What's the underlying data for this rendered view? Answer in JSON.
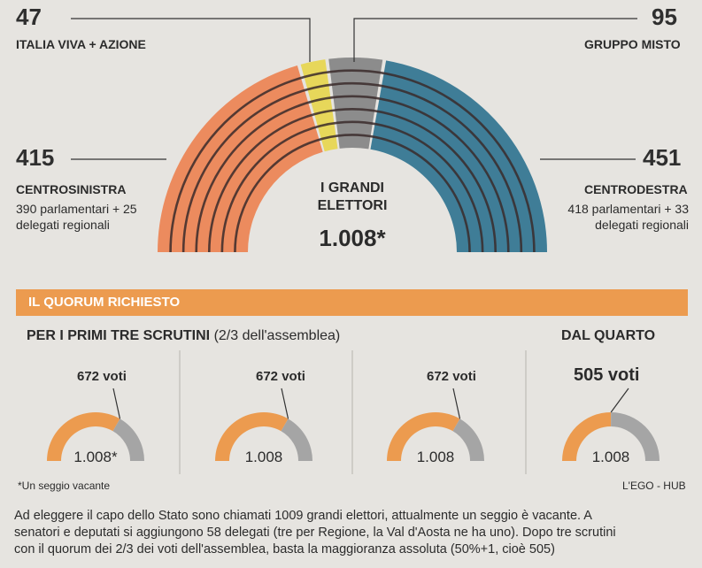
{
  "chart_data": {
    "type": "parliament-arc",
    "title_lines": [
      "I GRANDI",
      "ELETTORI"
    ],
    "total": "1.008*",
    "groups": [
      {
        "value": 415,
        "number": "415",
        "name": "CENTROSINISTRA",
        "detail": "390 parlamentari + 25 delegati regionali",
        "color": "#ec8b5e"
      },
      {
        "value": 47,
        "number": "47",
        "name": "ITALIA VIVA + AZIONE",
        "detail": "",
        "color": "#e7d75a"
      },
      {
        "value": 95,
        "number": "95",
        "name": "GRUPPO MISTO",
        "detail": "",
        "color": "#8c8c8c"
      },
      {
        "value": 451,
        "number": "451",
        "name": "CENTRODESTRA",
        "detail": "418 parlamentari + 33 delegati regionali",
        "color": "#3f7d97"
      }
    ]
  },
  "quorum": {
    "banner": "IL QUORUM RICHIESTO",
    "first_label_bold": "PER I PRIMI TRE SCRUTINI",
    "first_label_rest": " (2/3 dell'assemblea)",
    "fourth_label": "DAL QUARTO",
    "gauges": [
      {
        "votes": 672,
        "votes_label": "672 voti",
        "total_label": "1.008*",
        "total": 1008
      },
      {
        "votes": 672,
        "votes_label": "672 voti",
        "total_label": "1.008",
        "total": 1008
      },
      {
        "votes": 672,
        "votes_label": "672 voti",
        "total_label": "1.008",
        "total": 1008
      },
      {
        "votes": 505,
        "votes_label": "505 voti",
        "total_label": "1.008",
        "total": 1008
      }
    ],
    "colors": {
      "filled": "#ec9b4f",
      "empty": "#a5a5a5"
    }
  },
  "notes": {
    "vacancy": "*Un seggio vacante",
    "credit": "L'EGO - HUB"
  },
  "footer": {
    "line1": "Ad eleggere il capo dello Stato sono chiamati 1009 grandi elettori, attualmente un seggio è vacante. A",
    "line2": "senatori e deputati si aggiungono 58 delegati (tre per Regione, la Val d'Aosta ne ha uno). Dopo tre scrutini",
    "line3": "con il quorum dei 2/3 dei voti dell'assemblea, basta la maggioranza assoluta (50%+1, cioè 505)"
  }
}
